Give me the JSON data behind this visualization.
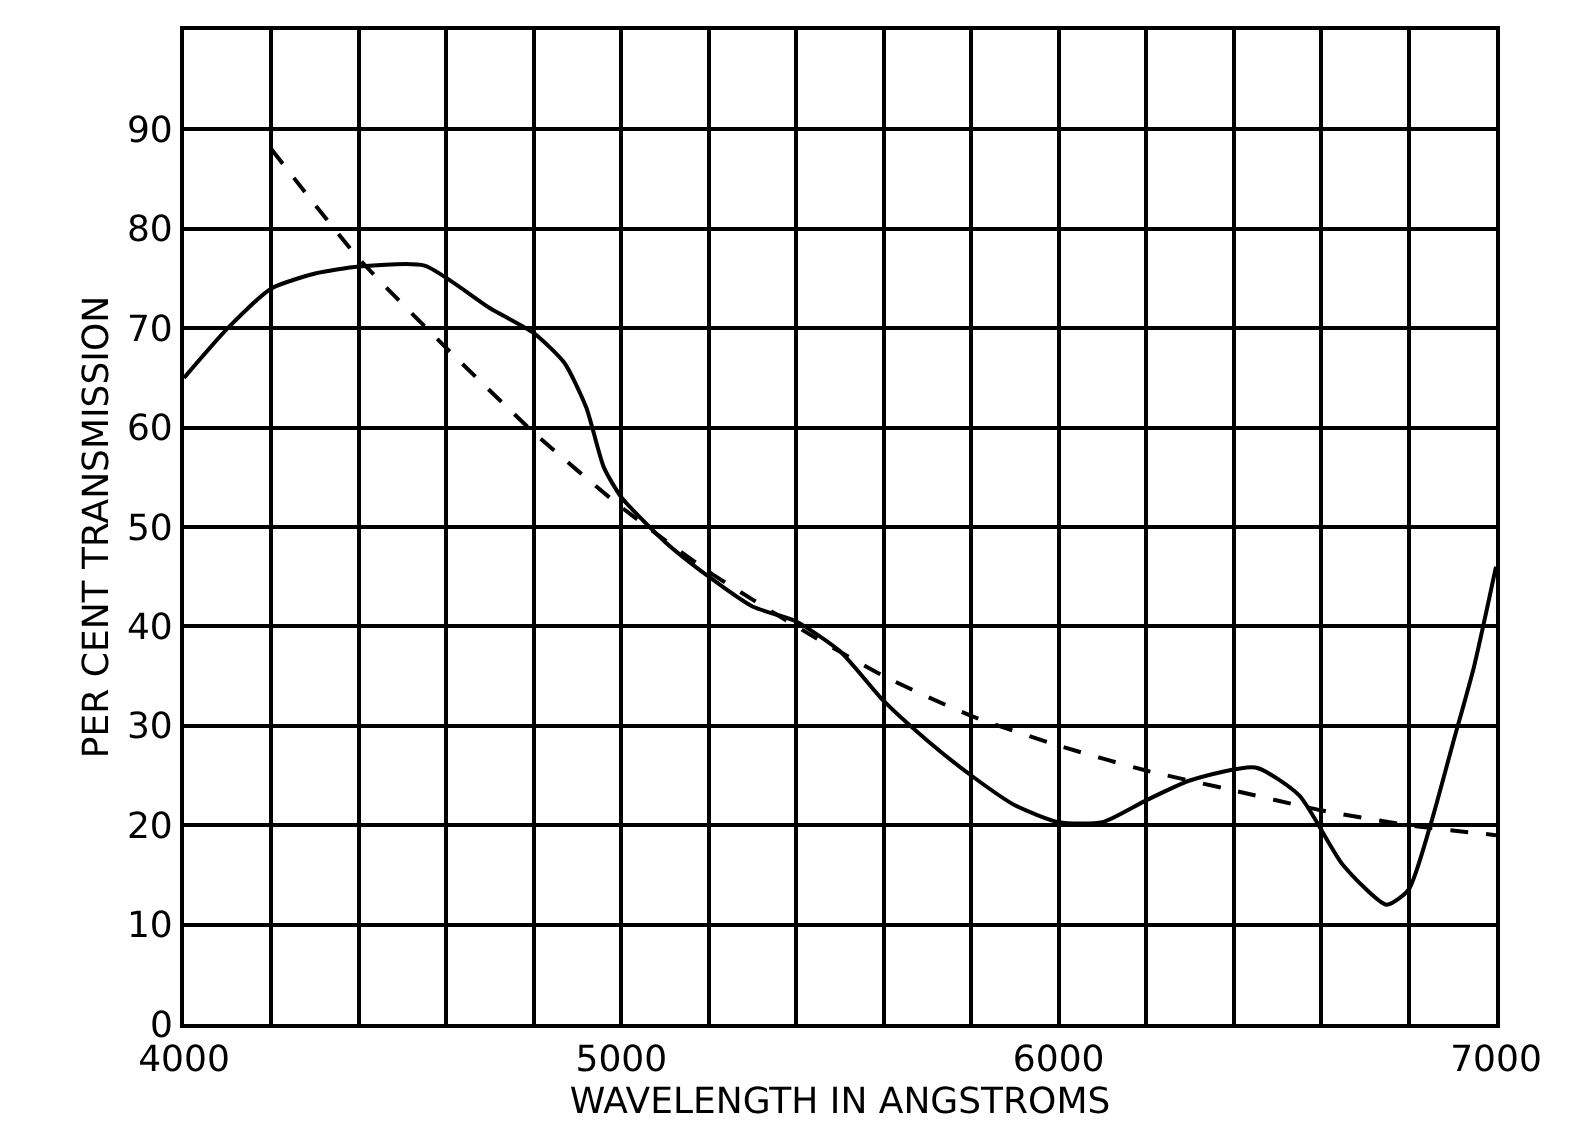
{
  "chart_data": {
    "type": "line",
    "xlabel": "WAVELENGTH IN ANGSTROMS",
    "ylabel": "PER CENT TRANSMISSION",
    "xlim": [
      4000,
      7000
    ],
    "ylim": [
      0,
      100
    ],
    "xticks": [
      4000,
      {
        "value": 4200,
        "label": null
      },
      {
        "value": 4400,
        "label": null
      },
      {
        "value": 4600,
        "label": null
      },
      {
        "value": 4800,
        "label": null
      },
      5000,
      {
        "value": 5200,
        "label": null
      },
      {
        "value": 5400,
        "label": null
      },
      {
        "value": 5600,
        "label": null
      },
      {
        "value": 5800,
        "label": null
      },
      6000,
      {
        "value": 6200,
        "label": null
      },
      {
        "value": 6400,
        "label": null
      },
      {
        "value": 6600,
        "label": null
      },
      {
        "value": 6800,
        "label": null
      },
      7000
    ],
    "yticks": [
      0,
      10,
      20,
      30,
      40,
      50,
      60,
      70,
      80,
      90
    ],
    "grid": true,
    "marker": "none",
    "series": [
      {
        "color": "#000000",
        "line_style": "solid",
        "x": [
          4000,
          4100,
          4200,
          4300,
          4400,
          4550,
          4700,
          4800,
          4870,
          4920,
          4960,
          5000,
          5100,
          5200,
          5300,
          5400,
          5500,
          5600,
          5700,
          5800,
          5900,
          6000,
          6100,
          6200,
          6300,
          6450,
          6550,
          6650,
          6750,
          6800,
          6850,
          6900,
          6950,
          7000
        ],
        "values": [
          65,
          70,
          74,
          75.5,
          76.2,
          76.3,
          72,
          69.5,
          66.5,
          62,
          56,
          53,
          48.5,
          45,
          42,
          40.5,
          37.5,
          32.5,
          28.5,
          25,
          22,
          20.3,
          20.3,
          22.5,
          24.5,
          25.8,
          23,
          16,
          12,
          13.5,
          20,
          28,
          36,
          46
        ]
      },
      {
        "color": "#000000",
        "line_style": "dashed",
        "x": [
          4200,
          4400,
          4600,
          4800,
          5000,
          5200,
          5400,
          5600,
          5800,
          6000,
          6200,
          6400,
          6600,
          6800,
          7000
        ],
        "values": [
          88,
          77,
          68,
          59.5,
          52,
          45.5,
          40,
          35,
          31,
          28,
          25.5,
          23.5,
          21.5,
          20,
          19
        ]
      }
    ]
  }
}
